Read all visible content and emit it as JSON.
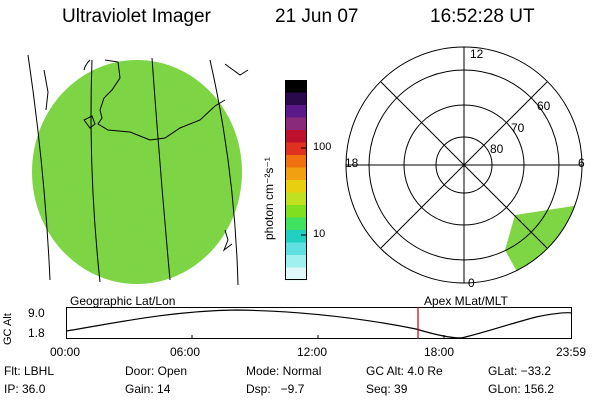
{
  "header": {
    "title": "Ultraviolet Imager",
    "date": "21 Jun 07",
    "time": "16:52:28 UT"
  },
  "colorbar": {
    "unit": "photon cm⁻²s⁻¹",
    "ticks": [
      "100",
      "10"
    ],
    "colors": [
      "#000000",
      "#2a0a4a",
      "#5a1a8a",
      "#8a2a7a",
      "#c01030",
      "#e03020",
      "#f07010",
      "#f0a010",
      "#e8d010",
      "#c0e020",
      "#80e020",
      "#40e060",
      "#20d0c0",
      "#60e0e0",
      "#a0f0f0",
      "#e0f8f8"
    ]
  },
  "polar_plot": {
    "labels": [
      "12",
      "60",
      "70",
      "80",
      "18",
      "6",
      "0"
    ]
  },
  "timeline": {
    "left_title": "Geographic Lat/Lon",
    "right_title": "Apex MLat/MLT",
    "axis_label": "GC Alt",
    "y_ticks": [
      "9.0",
      "1.8"
    ],
    "x_ticks": [
      "00:00",
      "06:00",
      "12:00",
      "18:00",
      "23:59"
    ],
    "marker_color": "#cc0000"
  },
  "status": {
    "filter": "Flt: LBHL",
    "door": "Door: Open",
    "mode": "Mode: Normal",
    "gc_alt": "GC Alt: 4.0 Re",
    "glat": "GLat: −33.2",
    "ip": "IP: 36.0",
    "gain": "Gain: 14",
    "dsp": "Dsp:   −9.7",
    "seq": "Seq: 39",
    "glon": "GLon: 156.2"
  },
  "colors": {
    "disk_green": "#7fd644",
    "accent_red": "#cc0000"
  }
}
